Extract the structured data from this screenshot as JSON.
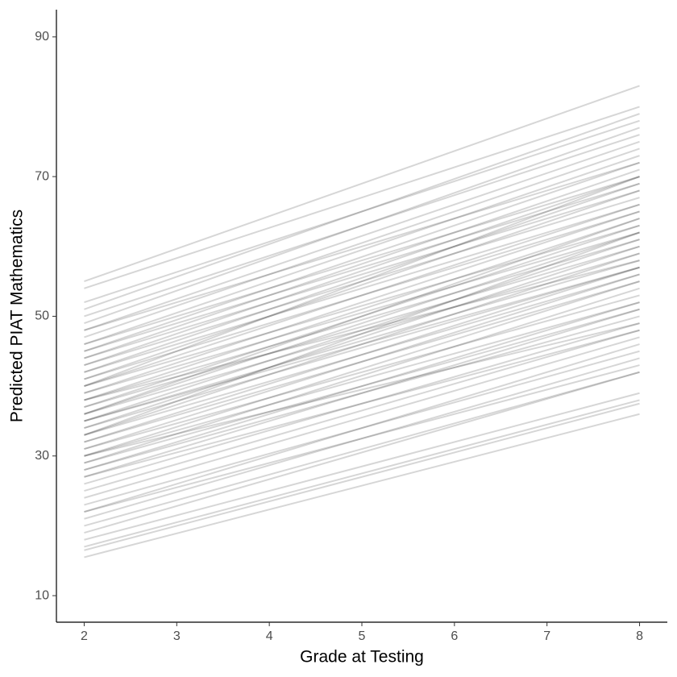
{
  "chart_data": {
    "type": "line",
    "x_label": "Grade at Testing",
    "y_label": "Predicted PIAT Mathematics",
    "x": [
      2,
      8
    ],
    "xlim": [
      1.7,
      8.3
    ],
    "xticks": [
      2,
      3,
      4,
      5,
      6,
      7,
      8
    ],
    "ylim": [
      6.2,
      93.9
    ],
    "yticks": [
      10,
      30,
      50,
      70,
      90
    ],
    "grid": false,
    "color": "#000000",
    "opacity": 0.16,
    "series": [
      {
        "values": [
          55,
          83
        ]
      },
      {
        "values": [
          54,
          80
        ]
      },
      {
        "values": [
          52,
          78
        ]
      },
      {
        "values": [
          51,
          79
        ]
      },
      {
        "values": [
          50,
          76
        ]
      },
      {
        "values": [
          49,
          77
        ]
      },
      {
        "values": [
          48,
          75
        ]
      },
      {
        "values": [
          48,
          72
        ]
      },
      {
        "values": [
          47,
          74
        ]
      },
      {
        "values": [
          46,
          73
        ]
      },
      {
        "values": [
          46,
          70
        ]
      },
      {
        "values": [
          45,
          72
        ]
      },
      {
        "values": [
          44,
          71
        ]
      },
      {
        "values": [
          44,
          68
        ]
      },
      {
        "values": [
          43,
          70
        ]
      },
      {
        "values": [
          43,
          67
        ]
      },
      {
        "values": [
          42,
          69
        ]
      },
      {
        "values": [
          42,
          66
        ]
      },
      {
        "values": [
          41,
          68
        ]
      },
      {
        "values": [
          41,
          65
        ]
      },
      {
        "values": [
          40,
          66
        ]
      },
      {
        "values": [
          40,
          63
        ]
      },
      {
        "values": [
          39,
          65
        ]
      },
      {
        "values": [
          39,
          62
        ]
      },
      {
        "values": [
          38,
          64
        ]
      },
      {
        "values": [
          38,
          61
        ]
      },
      {
        "values": [
          37,
          63
        ]
      },
      {
        "values": [
          37,
          60
        ]
      },
      {
        "values": [
          36,
          62
        ]
      },
      {
        "values": [
          36,
          59
        ]
      },
      {
        "values": [
          35,
          61
        ]
      },
      {
        "values": [
          35,
          58
        ]
      },
      {
        "values": [
          34,
          60
        ]
      },
      {
        "values": [
          34,
          57
        ]
      },
      {
        "values": [
          33,
          59
        ]
      },
      {
        "values": [
          33,
          56
        ]
      },
      {
        "values": [
          32,
          57
        ]
      },
      {
        "values": [
          32,
          55
        ]
      },
      {
        "values": [
          31,
          56
        ]
      },
      {
        "values": [
          31,
          53
        ]
      },
      {
        "values": [
          30,
          55
        ]
      },
      {
        "values": [
          30,
          52
        ]
      },
      {
        "values": [
          29,
          54
        ]
      },
      {
        "values": [
          29,
          51
        ]
      },
      {
        "values": [
          28,
          52
        ]
      },
      {
        "values": [
          28,
          50
        ]
      },
      {
        "values": [
          27,
          51
        ]
      },
      {
        "values": [
          27,
          48
        ]
      },
      {
        "values": [
          26,
          49
        ]
      },
      {
        "values": [
          25,
          48
        ]
      },
      {
        "values": [
          24,
          47
        ]
      },
      {
        "values": [
          23,
          45
        ]
      },
      {
        "values": [
          22,
          46
        ]
      },
      {
        "values": [
          22,
          43
        ]
      },
      {
        "values": [
          21,
          44
        ]
      },
      {
        "values": [
          20,
          42
        ]
      },
      {
        "values": [
          19,
          42
        ]
      },
      {
        "values": [
          18,
          39
        ]
      },
      {
        "values": [
          17,
          38
        ]
      },
      {
        "values": [
          16.5,
          37.5
        ]
      },
      {
        "values": [
          15.5,
          36
        ]
      },
      {
        "values": [
          36,
          64
        ]
      },
      {
        "values": [
          35,
          57
        ]
      },
      {
        "values": [
          38,
          58
        ]
      },
      {
        "values": [
          40,
          70
        ]
      },
      {
        "values": [
          45,
          69
        ]
      },
      {
        "values": [
          33,
          62
        ]
      },
      {
        "values": [
          30,
          49
        ]
      }
    ]
  }
}
